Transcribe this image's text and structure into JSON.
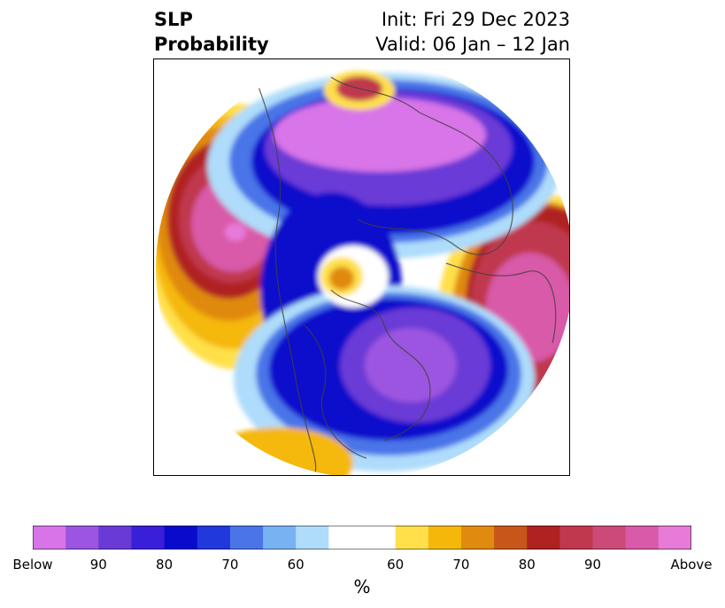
{
  "title": {
    "left_line1": "SLP",
    "left_line2": "Probability",
    "init": "Init: Fri 29 Dec 2023",
    "valid": "Valid: 06 Jan – 12 Jan"
  },
  "colorbar": {
    "unit": "%",
    "colors": [
      "#d874e8",
      "#9c55e0",
      "#6a3ad6",
      "#3a1fd8",
      "#0a0acc",
      "#2038dc",
      "#4a74e8",
      "#78b2f2",
      "#aedcfa",
      "#ffffff",
      "#ffe04a",
      "#f5b80a",
      "#e08a10",
      "#c8561a",
      "#b02222",
      "#c0384e",
      "#cc4a78",
      "#d85aa8",
      "#e87ad8"
    ],
    "tick_labels": [
      "Below",
      "90",
      "80",
      "70",
      "60",
      "60",
      "70",
      "80",
      "90",
      "Above"
    ]
  },
  "map": {
    "projection": "north-polar-stereographic",
    "field": "sea-level-pressure-probability"
  }
}
